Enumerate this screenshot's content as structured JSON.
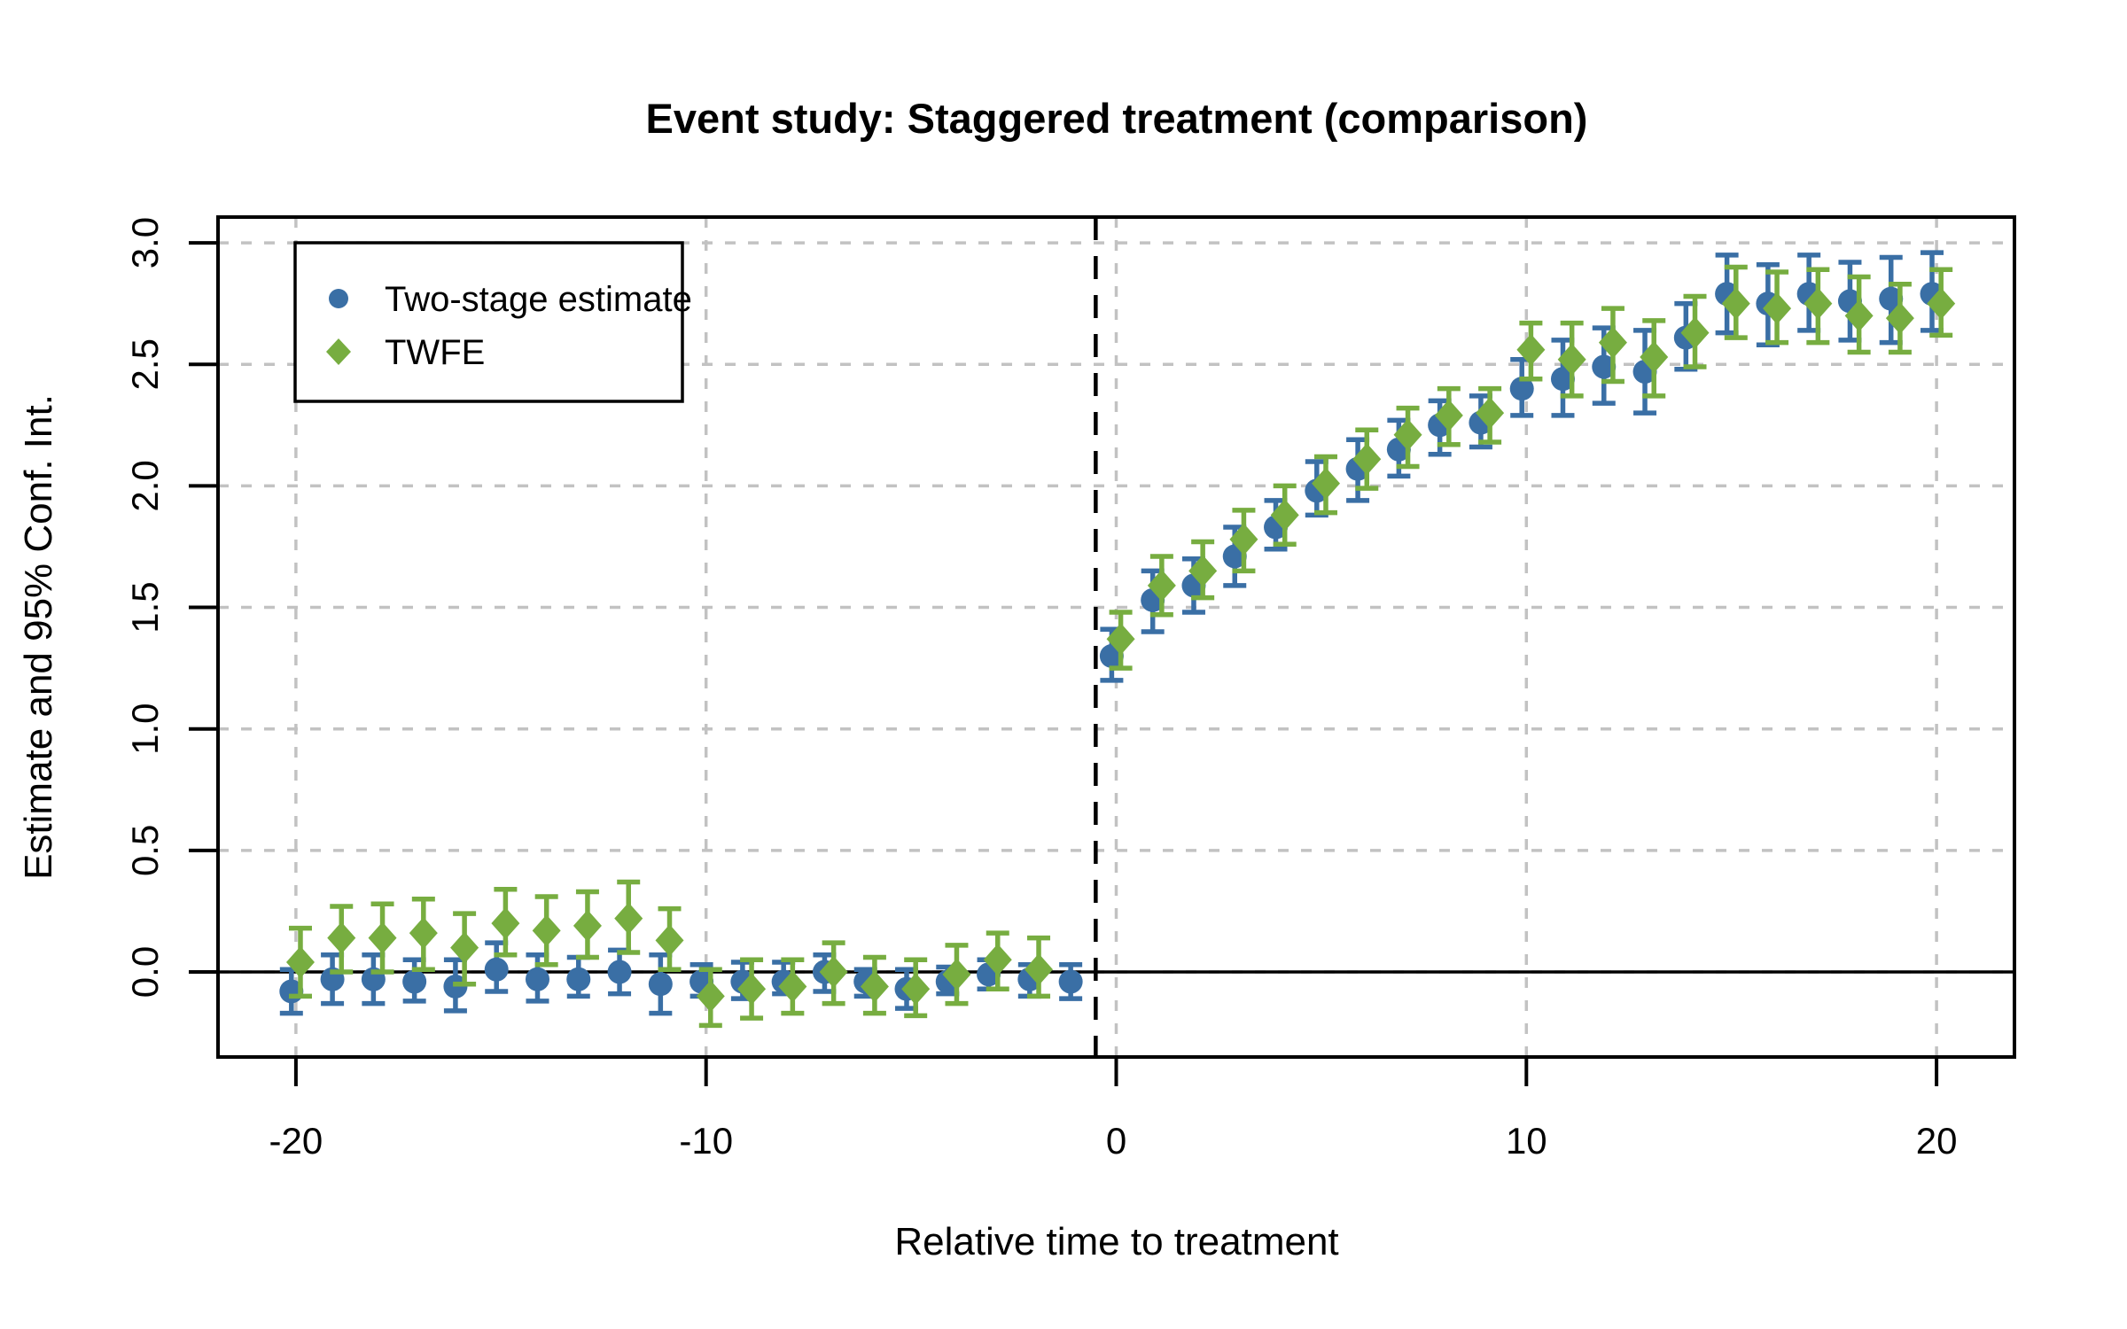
{
  "chart_data": {
    "type": "scatter",
    "title": "Event study: Staggered treatment (comparison)",
    "xlabel": "Relative time to treatment",
    "ylabel": "Estimate and 95% Conf. Int.",
    "xlim": [
      -21.9,
      21.9
    ],
    "ylim": [
      -0.34,
      3.09
    ],
    "x_ticks": [
      -20,
      -10,
      0,
      10,
      20
    ],
    "x_tick_labels": [
      "-20",
      "-10",
      "0",
      "10",
      "20"
    ],
    "y_ticks": [
      0.0,
      0.5,
      1.0,
      1.5,
      2.0,
      2.5,
      3.0
    ],
    "y_tick_labels": [
      "0.0",
      "0.5",
      "1.0",
      "1.5",
      "2.0",
      "2.5",
      "3.0"
    ],
    "grid": true,
    "grid_color": "#c2c2c2",
    "reference_lines": {
      "horizontal_solid_y": 0,
      "vertical_dashed_x": -0.5
    },
    "legend": {
      "position": "top-left",
      "entries": [
        {
          "label": "Two-stage estimate",
          "marker": "circle",
          "color": "#3A6FA5"
        },
        {
          "label": "TWFE",
          "marker": "diamond",
          "color": "#77AD40"
        }
      ]
    },
    "series": [
      {
        "name": "Two-stage estimate",
        "marker": "circle",
        "color": "#3A6FA5",
        "x_offset": -0.11,
        "points": [
          {
            "t": -20,
            "est": -0.08,
            "lo": -0.17,
            "hi": 0.01
          },
          {
            "t": -19,
            "est": -0.03,
            "lo": -0.13,
            "hi": 0.07
          },
          {
            "t": -18,
            "est": -0.03,
            "lo": -0.13,
            "hi": 0.07
          },
          {
            "t": -17,
            "est": -0.04,
            "lo": -0.12,
            "hi": 0.05
          },
          {
            "t": -16,
            "est": -0.06,
            "lo": -0.16,
            "hi": 0.05
          },
          {
            "t": -15,
            "est": 0.01,
            "lo": -0.08,
            "hi": 0.12
          },
          {
            "t": -14,
            "est": -0.03,
            "lo": -0.12,
            "hi": 0.07
          },
          {
            "t": -13,
            "est": -0.03,
            "lo": -0.1,
            "hi": 0.06
          },
          {
            "t": -12,
            "est": 0.0,
            "lo": -0.09,
            "hi": 0.09
          },
          {
            "t": -11,
            "est": -0.05,
            "lo": -0.17,
            "hi": 0.07
          },
          {
            "t": -10,
            "est": -0.04,
            "lo": -0.1,
            "hi": 0.03
          },
          {
            "t": -9,
            "est": -0.04,
            "lo": -0.11,
            "hi": 0.04
          },
          {
            "t": -8,
            "est": -0.04,
            "lo": -0.09,
            "hi": 0.04
          },
          {
            "t": -7,
            "est": 0.0,
            "lo": -0.08,
            "hi": 0.07
          },
          {
            "t": -6,
            "est": -0.04,
            "lo": -0.1,
            "hi": 0.01
          },
          {
            "t": -5,
            "est": -0.07,
            "lo": -0.15,
            "hi": 0.01
          },
          {
            "t": -4,
            "est": -0.04,
            "lo": -0.09,
            "hi": 0.02
          },
          {
            "t": -3,
            "est": -0.01,
            "lo": -0.07,
            "hi": 0.05
          },
          {
            "t": -2,
            "est": -0.03,
            "lo": -0.1,
            "hi": 0.03
          },
          {
            "t": -1,
            "est": -0.04,
            "lo": -0.11,
            "hi": 0.03
          },
          {
            "t": 0,
            "est": 1.3,
            "lo": 1.2,
            "hi": 1.41
          },
          {
            "t": 1,
            "est": 1.53,
            "lo": 1.4,
            "hi": 1.65
          },
          {
            "t": 2,
            "est": 1.59,
            "lo": 1.48,
            "hi": 1.7
          },
          {
            "t": 3,
            "est": 1.71,
            "lo": 1.59,
            "hi": 1.83
          },
          {
            "t": 4,
            "est": 1.83,
            "lo": 1.74,
            "hi": 1.94
          },
          {
            "t": 5,
            "est": 1.98,
            "lo": 1.88,
            "hi": 2.1
          },
          {
            "t": 6,
            "est": 2.07,
            "lo": 1.94,
            "hi": 2.19
          },
          {
            "t": 7,
            "est": 2.15,
            "lo": 2.04,
            "hi": 2.27
          },
          {
            "t": 8,
            "est": 2.25,
            "lo": 2.13,
            "hi": 2.35
          },
          {
            "t": 9,
            "est": 2.26,
            "lo": 2.16,
            "hi": 2.37
          },
          {
            "t": 10,
            "est": 2.4,
            "lo": 2.29,
            "hi": 2.52
          },
          {
            "t": 11,
            "est": 2.44,
            "lo": 2.29,
            "hi": 2.6
          },
          {
            "t": 12,
            "est": 2.49,
            "lo": 2.34,
            "hi": 2.65
          },
          {
            "t": 13,
            "est": 2.47,
            "lo": 2.3,
            "hi": 2.64
          },
          {
            "t": 14,
            "est": 2.61,
            "lo": 2.48,
            "hi": 2.75
          },
          {
            "t": 15,
            "est": 2.79,
            "lo": 2.63,
            "hi": 2.95
          },
          {
            "t": 16,
            "est": 2.75,
            "lo": 2.58,
            "hi": 2.91
          },
          {
            "t": 17,
            "est": 2.79,
            "lo": 2.64,
            "hi": 2.95
          },
          {
            "t": 18,
            "est": 2.76,
            "lo": 2.6,
            "hi": 2.92
          },
          {
            "t": 19,
            "est": 2.77,
            "lo": 2.59,
            "hi": 2.94
          },
          {
            "t": 20,
            "est": 2.79,
            "lo": 2.64,
            "hi": 2.96
          }
        ]
      },
      {
        "name": "TWFE",
        "marker": "diamond",
        "color": "#77AD40",
        "x_offset": 0.11,
        "points": [
          {
            "t": -20,
            "est": 0.04,
            "lo": -0.1,
            "hi": 0.18
          },
          {
            "t": -19,
            "est": 0.14,
            "lo": 0.0,
            "hi": 0.27
          },
          {
            "t": -18,
            "est": 0.14,
            "lo": 0.0,
            "hi": 0.28
          },
          {
            "t": -17,
            "est": 0.16,
            "lo": 0.01,
            "hi": 0.3
          },
          {
            "t": -16,
            "est": 0.1,
            "lo": -0.05,
            "hi": 0.24
          },
          {
            "t": -15,
            "est": 0.2,
            "lo": 0.07,
            "hi": 0.34
          },
          {
            "t": -14,
            "est": 0.17,
            "lo": 0.03,
            "hi": 0.31
          },
          {
            "t": -13,
            "est": 0.19,
            "lo": 0.06,
            "hi": 0.33
          },
          {
            "t": -12,
            "est": 0.22,
            "lo": 0.08,
            "hi": 0.37
          },
          {
            "t": -11,
            "est": 0.13,
            "lo": 0.01,
            "hi": 0.26
          },
          {
            "t": -10,
            "est": -0.1,
            "lo": -0.22,
            "hi": 0.01
          },
          {
            "t": -9,
            "est": -0.07,
            "lo": -0.19,
            "hi": 0.05
          },
          {
            "t": -8,
            "est": -0.06,
            "lo": -0.17,
            "hi": 0.05
          },
          {
            "t": -7,
            "est": 0.0,
            "lo": -0.13,
            "hi": 0.12
          },
          {
            "t": -6,
            "est": -0.06,
            "lo": -0.17,
            "hi": 0.06
          },
          {
            "t": -5,
            "est": -0.07,
            "lo": -0.18,
            "hi": 0.05
          },
          {
            "t": -4,
            "est": -0.01,
            "lo": -0.13,
            "hi": 0.11
          },
          {
            "t": -3,
            "est": 0.05,
            "lo": -0.07,
            "hi": 0.16
          },
          {
            "t": -2,
            "est": 0.01,
            "lo": -0.1,
            "hi": 0.14
          },
          {
            "t": 0,
            "est": 1.37,
            "lo": 1.25,
            "hi": 1.48
          },
          {
            "t": 1,
            "est": 1.59,
            "lo": 1.47,
            "hi": 1.71
          },
          {
            "t": 2,
            "est": 1.65,
            "lo": 1.54,
            "hi": 1.77
          },
          {
            "t": 3,
            "est": 1.78,
            "lo": 1.65,
            "hi": 1.9
          },
          {
            "t": 4,
            "est": 1.88,
            "lo": 1.76,
            "hi": 2.0
          },
          {
            "t": 5,
            "est": 2.01,
            "lo": 1.89,
            "hi": 2.12
          },
          {
            "t": 6,
            "est": 2.11,
            "lo": 1.99,
            "hi": 2.23
          },
          {
            "t": 7,
            "est": 2.21,
            "lo": 2.08,
            "hi": 2.32
          },
          {
            "t": 8,
            "est": 2.29,
            "lo": 2.17,
            "hi": 2.4
          },
          {
            "t": 9,
            "est": 2.3,
            "lo": 2.18,
            "hi": 2.4
          },
          {
            "t": 10,
            "est": 2.56,
            "lo": 2.44,
            "hi": 2.67
          },
          {
            "t": 11,
            "est": 2.52,
            "lo": 2.37,
            "hi": 2.67
          },
          {
            "t": 12,
            "est": 2.59,
            "lo": 2.43,
            "hi": 2.73
          },
          {
            "t": 13,
            "est": 2.53,
            "lo": 2.37,
            "hi": 2.68
          },
          {
            "t": 14,
            "est": 2.63,
            "lo": 2.49,
            "hi": 2.78
          },
          {
            "t": 15,
            "est": 2.75,
            "lo": 2.61,
            "hi": 2.9
          },
          {
            "t": 16,
            "est": 2.73,
            "lo": 2.59,
            "hi": 2.88
          },
          {
            "t": 17,
            "est": 2.75,
            "lo": 2.59,
            "hi": 2.89
          },
          {
            "t": 18,
            "est": 2.7,
            "lo": 2.55,
            "hi": 2.86
          },
          {
            "t": 19,
            "est": 2.69,
            "lo": 2.55,
            "hi": 2.83
          },
          {
            "t": 20,
            "est": 2.75,
            "lo": 2.62,
            "hi": 2.89
          }
        ]
      }
    ]
  }
}
